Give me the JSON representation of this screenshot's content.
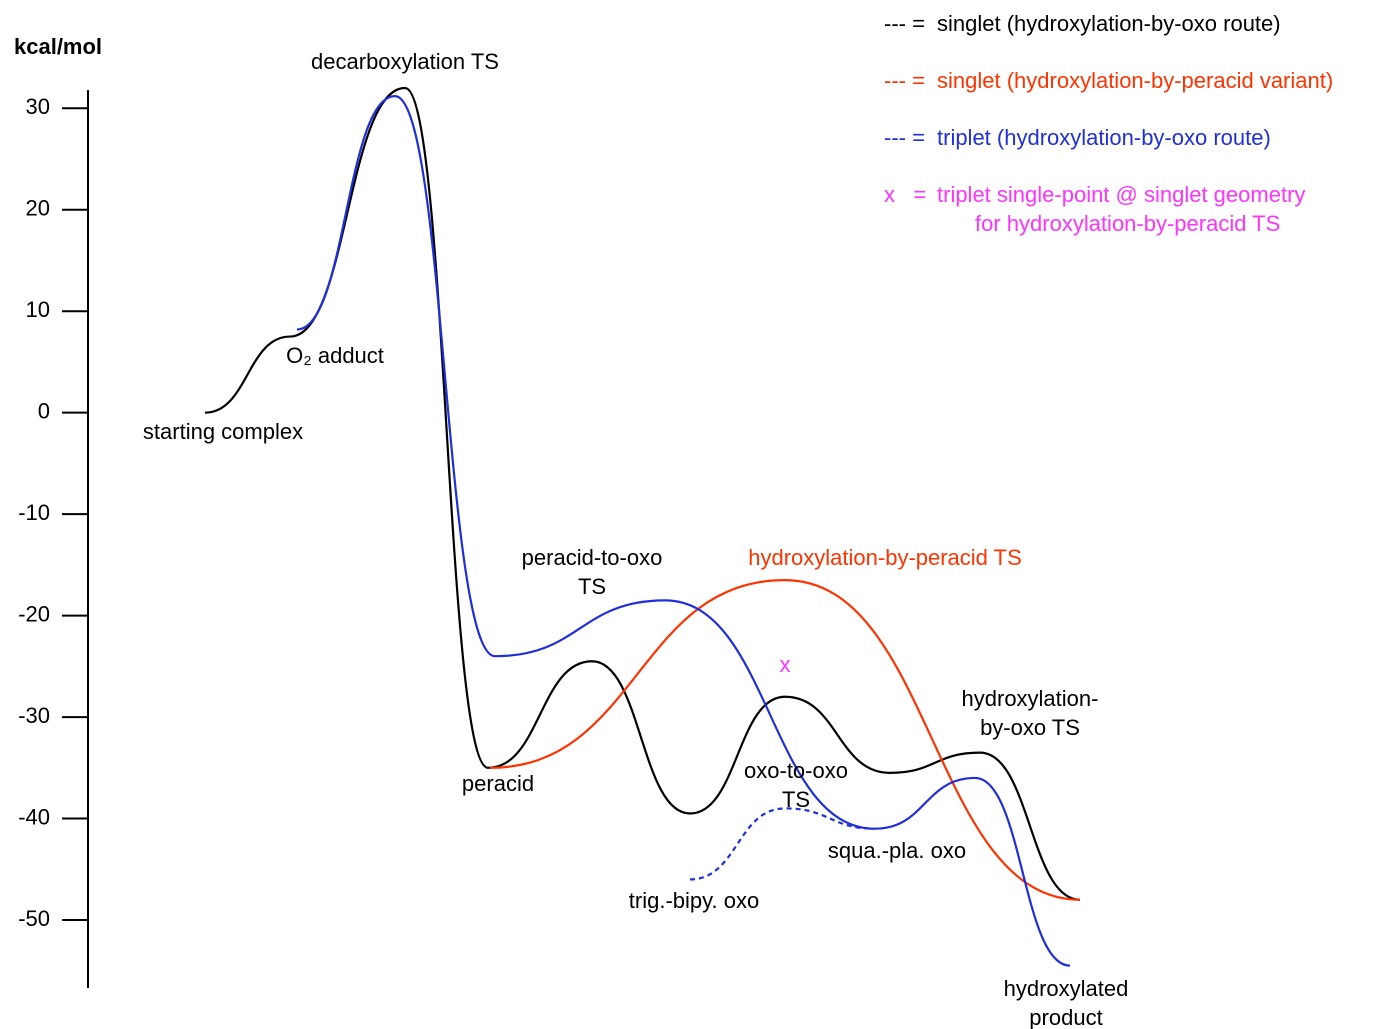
{
  "chart_data": {
    "type": "energy-profile",
    "y_label": "kcal/mol",
    "ylim": [
      -56.7,
      31.8
    ],
    "yticks": [
      30,
      20,
      10,
      0,
      -10,
      -20,
      -30,
      -40,
      -50
    ],
    "series": [
      {
        "name": "singlet (hydroxylation-by-oxo route)",
        "legend_key": "--- =",
        "color": "#000000",
        "style": "solid",
        "values": [
          0,
          7.5,
          32,
          -35,
          -24.5,
          -39.5,
          -28,
          -35.5,
          -33.5,
          -48
        ]
      },
      {
        "name": "singlet (hydroxylation-by-peracid variant)",
        "legend_key": "--- =",
        "color": "#ff3300",
        "style": "solid",
        "values": [
          -35,
          -16.5,
          -48
        ]
      },
      {
        "name": "triplet (hydroxylation-by-oxo route)",
        "legend_key": "--- =",
        "color": "#1f2fdc",
        "style": "solid",
        "values": [
          8.2,
          31.2,
          -24,
          -18.5,
          -41,
          -36,
          -54.5
        ]
      },
      {
        "color": "#1f2fdc",
        "style": "dashed",
        "values": [
          -46,
          -39,
          -41
        ]
      }
    ],
    "markers": [
      {
        "symbol": "x",
        "legend_key": "x   =",
        "color": "#ff33ff",
        "value": -25,
        "name": [
          "triplet single-point @ singlet geometry",
          "for hydroxylation-by-peracid TS"
        ]
      }
    ],
    "annotations": [
      {
        "text": [
          "decarboxylation TS"
        ],
        "color": "#000000"
      },
      {
        "text": [
          "O₂ adduct"
        ],
        "color": "#000000"
      },
      {
        "text": [
          "starting complex"
        ],
        "color": "#000000"
      },
      {
        "text": [
          "peracid-to-oxo",
          "TS"
        ],
        "color": "#000000"
      },
      {
        "text": [
          "hydroxylation-by-peracid TS"
        ],
        "color": "#ff3300"
      },
      {
        "text": [
          "peracid"
        ],
        "color": "#000000"
      },
      {
        "text": [
          "oxo-to-oxo",
          "TS"
        ],
        "color": "#000000"
      },
      {
        "text": [
          "hydroxylation-",
          "by-oxo TS"
        ],
        "color": "#000000"
      },
      {
        "text": [
          "squa.-pla. oxo"
        ],
        "color": "#000000"
      },
      {
        "text": [
          "trig.-bipy. oxo"
        ],
        "color": "#000000"
      },
      {
        "text": [
          "hydroxylated",
          "product"
        ],
        "color": "#000000"
      }
    ]
  }
}
